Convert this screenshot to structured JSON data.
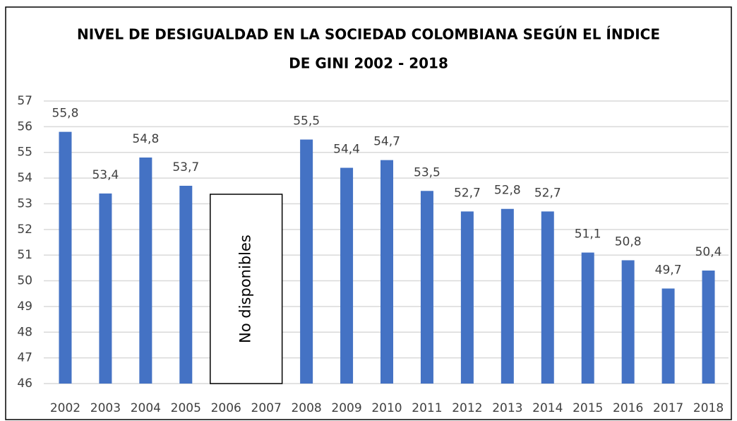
{
  "chart_data": {
    "type": "bar",
    "title": [
      "NIVEL DE DESIGUALDAD EN LA SOCIEDAD COLOMBIANA SEGÚN EL ÍNDICE",
      "DE GINI 2002 - 2018"
    ],
    "categories": [
      "2002",
      "2003",
      "2004",
      "2005",
      "2006",
      "2007",
      "2008",
      "2009",
      "2010",
      "2011",
      "2012",
      "2013",
      "2014",
      "2015",
      "2016",
      "2017",
      "2018"
    ],
    "values": [
      55.8,
      53.4,
      54.8,
      53.7,
      null,
      null,
      55.5,
      54.4,
      54.7,
      53.5,
      52.7,
      52.8,
      52.7,
      51.1,
      50.8,
      49.7,
      50.4
    ],
    "value_labels": [
      "55,8",
      "53,4",
      "54,8",
      "53,7",
      null,
      null,
      "55,5",
      "54,4",
      "54,7",
      "53,5",
      "52,7",
      "52,8",
      "52,7",
      "51,1",
      "50,8",
      "49,7",
      "50,4"
    ],
    "color": "#4472c4",
    "annotations": [
      {
        "text": "No disponibles",
        "categories": [
          "2006",
          "2007"
        ]
      }
    ],
    "ylim": [
      46,
      57
    ],
    "yticks": [
      46,
      47,
      48,
      49,
      50,
      51,
      52,
      53,
      54,
      55,
      56,
      57
    ],
    "grid": true
  }
}
